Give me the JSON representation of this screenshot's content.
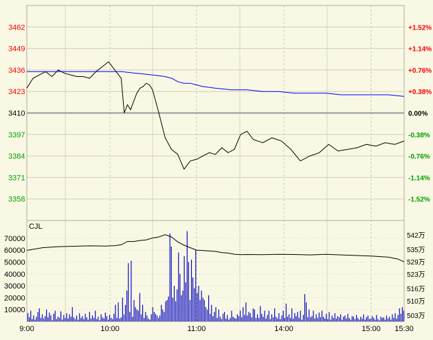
{
  "chart_data": [
    {
      "type": "line",
      "series": [
        {
          "name": "",
          "color": "#000000",
          "x": [
            0,
            4,
            8,
            12,
            16,
            20,
            24,
            28,
            32,
            36,
            40,
            44,
            48,
            52,
            56,
            60,
            62,
            64,
            66,
            68,
            70,
            72,
            74,
            76,
            78,
            80,
            84,
            88,
            92,
            96,
            100,
            104,
            108,
            112,
            116,
            120,
            124,
            128,
            132,
            136,
            140,
            144,
            150,
            156,
            162,
            168,
            174,
            180,
            186,
            192,
            198,
            204,
            210,
            216,
            222,
            228,
            234,
            240
          ],
          "y": [
            3425,
            3431,
            3433,
            3435,
            3432,
            3436,
            3434,
            3433,
            3432,
            3432,
            3431,
            3435,
            3438,
            3441,
            3436,
            3431,
            3410,
            3415,
            3412,
            3417,
            3422,
            3425,
            3426,
            3428,
            3427,
            3424,
            3410,
            3395,
            3388,
            3385,
            3376,
            3381,
            3382,
            3384,
            3386,
            3385,
            3389,
            3386,
            3388,
            3397,
            3399,
            3394,
            3392,
            3395,
            3393,
            3388,
            3381,
            3384,
            3386,
            3391,
            3387,
            3388,
            3389,
            3391,
            3390,
            3392,
            3391,
            3393
          ]
        },
        {
          "name": "",
          "color": "#0000ff",
          "x": [
            0,
            20,
            40,
            60,
            70,
            80,
            88,
            92,
            96,
            100,
            104,
            108,
            112,
            120,
            130,
            140,
            150,
            160,
            170,
            180,
            190,
            200,
            210,
            220,
            230,
            240
          ],
          "y": [
            3435,
            3435,
            3435,
            3435,
            3434,
            3433,
            3432,
            3431,
            3429,
            3428,
            3428,
            3427,
            3426,
            3425,
            3424,
            3424,
            3423,
            3423,
            3422,
            3422,
            3422,
            3421,
            3421,
            3421,
            3421,
            3420
          ]
        }
      ],
      "ylim": [
        3345,
        3475
      ],
      "left_ticks": [
        "3462",
        "3449",
        "3436",
        "3423",
        "3410",
        "3397",
        "3384",
        "3371",
        "3358"
      ],
      "right_ticks": [
        "+1.52%",
        "+1.14%",
        "+0.76%",
        "+0.38%",
        "0.00%",
        "-0.38%",
        "-0.76%",
        "-1.14%",
        "-1.52%"
      ],
      "baseline": 3410,
      "colors": {
        "up": "#ff0000",
        "down": "#00a000",
        "flat": "#000000"
      }
    },
    {
      "type": "bar",
      "title": "CJL",
      "left_ticks": [
        "70000",
        "60000",
        "50000",
        "40000",
        "30000",
        "20000",
        "10000"
      ],
      "right_ticks": [
        "542万",
        "535万",
        "529万",
        "523万",
        "516万",
        "510万",
        "503万"
      ],
      "ylim": [
        0,
        78000
      ],
      "x_ticks": [
        "9:00",
        "10:00",
        "11:00",
        "14:00",
        "15:00",
        "15:30"
      ],
      "bar_color": "#0000c0",
      "values": [
        7000,
        3500,
        9000,
        2000,
        5000,
        1500,
        4000,
        8000,
        11000,
        3000,
        6000,
        2500,
        4500,
        10000,
        3500,
        7500,
        5000,
        1000,
        6500,
        9000,
        2000,
        4000,
        3000,
        8500,
        1500,
        5500,
        3000,
        7000,
        2500,
        6000,
        4000,
        12000,
        3500,
        2000,
        5000,
        1500,
        7000,
        3000,
        4500,
        2000,
        6500,
        3500,
        1500,
        8000,
        2500,
        5000,
        3000,
        9000,
        2000,
        4000,
        1000,
        6000,
        3500,
        2500,
        7500,
        4500,
        1500,
        5500,
        3000,
        2000,
        6500,
        14000,
        3000,
        16000,
        2500,
        3500,
        20000,
        6000,
        14000,
        26000,
        49000,
        8000,
        51000,
        4000,
        18000,
        12000,
        10000,
        9000,
        24000,
        6000,
        14000,
        3000,
        8000,
        5000,
        2500,
        1500,
        6000,
        12000,
        8000,
        6500,
        5000,
        3000,
        5000,
        14000,
        10000,
        8000,
        17000,
        18000,
        21000,
        74000,
        63000,
        20000,
        30000,
        17000,
        27000,
        58000,
        40000,
        22000,
        26000,
        55000,
        33000,
        76000,
        50000,
        18000,
        52000,
        37000,
        28000,
        60000,
        24000,
        30000,
        18000,
        26000,
        20000,
        18000,
        12000,
        10000,
        22000,
        6500,
        14000,
        4500,
        8000,
        12000,
        3000,
        10000,
        4000,
        2000,
        6500,
        8000,
        2500,
        5500,
        1500,
        3000,
        9000,
        4000,
        3000,
        2500,
        6000,
        4500,
        9000,
        3500,
        12000,
        5500,
        16000,
        5000,
        8000,
        7000,
        3500,
        11000,
        10000,
        3000,
        6000,
        3000,
        13000,
        6500,
        4000,
        9000,
        2500,
        5500,
        9000,
        2000,
        6000,
        3500,
        11000,
        4000,
        2500,
        7000,
        2000,
        5000,
        9000,
        3000,
        15000,
        4000,
        6000,
        3000,
        11000,
        2500,
        7000,
        4500,
        8000,
        3000,
        9000,
        1500,
        5500,
        23000,
        16000,
        3500,
        10000,
        3500,
        4500,
        9000,
        2500,
        6000,
        3000,
        7500,
        3500,
        9000,
        4000,
        2500,
        6500,
        2000,
        8000,
        1500,
        5000,
        3000,
        7000,
        2500,
        4500,
        3500,
        6000,
        1500,
        4000,
        5000,
        2500,
        6500,
        3000,
        1500,
        4500,
        4000,
        2000,
        5500,
        3000,
        1500,
        4000,
        2500,
        6000,
        1500,
        3500,
        5000,
        2000,
        2500,
        4500,
        3000,
        1500,
        5500,
        2000,
        1000,
        4000,
        3000,
        3500,
        1500,
        5000,
        2500,
        4000,
        1500,
        6000,
        3000,
        7000,
        2500,
        5500,
        11000,
        6500,
        12000,
        9000
      ],
      "series": [
        {
          "name": "",
          "color": "#000000",
          "x": [
            0,
            10,
            20,
            30,
            40,
            50,
            56,
            60,
            64,
            68,
            72,
            76,
            80,
            84,
            88,
            92,
            96,
            100,
            104,
            108,
            112,
            116,
            120,
            124,
            128,
            132,
            136,
            140,
            150,
            160,
            170,
            180,
            190,
            200,
            210,
            220,
            230,
            236,
            240
          ],
          "y": [
            534.5,
            535.8,
            536.3,
            536.5,
            536.7,
            536.6,
            536.8,
            537.2,
            538.8,
            538.8,
            539.3,
            539.6,
            540.5,
            541.0,
            542.1,
            541.0,
            538.6,
            537.0,
            535.8,
            534.6,
            534.4,
            534.2,
            534.0,
            533.4,
            533.2,
            532.6,
            532.4,
            532.5,
            532.4,
            532.6,
            532.5,
            532.3,
            532.6,
            532.3,
            532.0,
            531.7,
            531.2,
            530.3,
            528.9
          ]
        }
      ]
    }
  ]
}
